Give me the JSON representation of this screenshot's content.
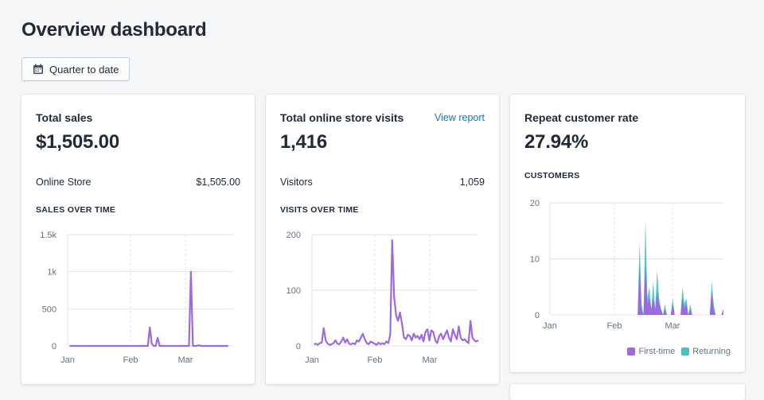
{
  "page": {
    "title": "Overview dashboard"
  },
  "date_filter": {
    "label": "Quarter to date",
    "icon": "calendar-icon"
  },
  "colors": {
    "purple": "#9c6ade",
    "teal": "#47c1bf",
    "link": "#007ace"
  },
  "cards": [
    {
      "title": "Total sales",
      "value": "$1,505.00",
      "row_label": "Online Store",
      "row_value": "$1,505.00",
      "section_label": "SALES OVER TIME"
    },
    {
      "title": "Total online store visits",
      "value": "1,416",
      "link_label": "View report",
      "row_label": "Visitors",
      "row_value": "1,059",
      "section_label": "VISITS OVER TIME"
    },
    {
      "title": "Repeat customer rate",
      "value": "27.94%",
      "section_label": "CUSTOMERS",
      "legend": [
        "First-time",
        "Returning"
      ]
    }
  ],
  "chart_data": [
    {
      "type": "line",
      "title": "SALES OVER TIME",
      "x_tick_labels": [
        "Jan",
        "Feb",
        "Mar"
      ],
      "y_tick_labels": [
        "0",
        "500",
        "1k",
        "1.5k"
      ],
      "ylim": [
        0,
        1500
      ],
      "grid": true,
      "x": [
        1,
        5,
        10,
        15,
        20,
        25,
        30,
        35,
        38,
        40,
        41,
        42,
        43,
        44,
        45,
        46,
        47,
        48,
        49,
        50,
        60,
        62,
        63,
        64,
        65,
        66,
        67,
        68,
        69,
        70,
        75,
        80,
        82
      ],
      "values": [
        0,
        0,
        0,
        0,
        0,
        0,
        0,
        0,
        0,
        0,
        0,
        250,
        30,
        0,
        0,
        110,
        0,
        0,
        0,
        0,
        0,
        0,
        1000,
        0,
        0,
        0,
        10,
        0,
        0,
        0,
        0,
        0,
        0
      ]
    },
    {
      "type": "line",
      "title": "VISITS OVER TIME",
      "x_tick_labels": [
        "Jan",
        "Feb",
        "Mar"
      ],
      "y_tick_labels": [
        "0",
        "100",
        "200"
      ],
      "ylim": [
        0,
        200
      ],
      "grid": true,
      "x": [
        1,
        2,
        3,
        4,
        5,
        6,
        7,
        8,
        9,
        10,
        11,
        12,
        13,
        14,
        15,
        16,
        17,
        18,
        19,
        20,
        21,
        22,
        23,
        24,
        25,
        26,
        27,
        28,
        29,
        30,
        31,
        32,
        33,
        34,
        35,
        36,
        37,
        38,
        39,
        40,
        41,
        42,
        43,
        44,
        45,
        46,
        47,
        48,
        49,
        50,
        51,
        52,
        53,
        54,
        55,
        56,
        57,
        58,
        59,
        60,
        61,
        62,
        63,
        64,
        65,
        66,
        67,
        68,
        69,
        70,
        71,
        72,
        73,
        74,
        75,
        76,
        77,
        78,
        79,
        80,
        81,
        82,
        83,
        84,
        85
      ],
      "values": [
        3,
        4,
        2,
        5,
        6,
        32,
        10,
        4,
        2,
        3,
        5,
        10,
        4,
        3,
        8,
        15,
        6,
        12,
        4,
        3,
        5,
        3,
        10,
        8,
        15,
        22,
        12,
        5,
        3,
        8,
        6,
        4,
        2,
        6,
        3,
        5,
        3,
        8,
        5,
        20,
        190,
        88,
        55,
        45,
        60,
        40,
        15,
        12,
        20,
        18,
        10,
        22,
        15,
        18,
        12,
        20,
        8,
        25,
        30,
        10,
        28,
        25,
        10,
        5,
        18,
        22,
        12,
        20,
        28,
        15,
        8,
        30,
        20,
        12,
        35,
        15,
        10,
        12,
        8,
        5,
        45,
        15,
        10,
        8,
        10
      ]
    },
    {
      "type": "area",
      "title": "CUSTOMERS",
      "x_tick_labels": [
        "Jan",
        "Feb",
        "Mar"
      ],
      "y_tick_labels": [
        "0",
        "10",
        "20"
      ],
      "ylim": [
        0,
        20
      ],
      "grid": true,
      "legend": "bottom-right",
      "series": [
        {
          "name": "First-time",
          "color": "#9c6ade",
          "values": [
            0,
            0,
            0,
            0,
            0,
            0,
            0,
            0,
            0,
            0,
            0,
            0,
            0,
            0,
            0,
            0,
            0,
            0,
            0,
            0,
            0,
            0,
            0,
            0,
            0,
            0,
            0,
            0,
            0,
            0,
            0,
            0,
            0,
            0,
            0,
            0,
            0,
            0,
            0,
            0,
            0,
            0,
            0,
            0,
            0,
            0,
            9,
            1,
            0,
            9,
            2,
            3,
            1,
            3,
            1,
            4,
            2,
            1,
            0,
            1,
            0,
            0,
            0,
            2,
            0,
            0,
            0,
            0,
            3,
            1,
            2,
            0,
            1,
            0,
            0,
            0,
            0,
            0,
            0,
            0,
            0,
            0,
            0,
            4,
            1,
            0,
            0,
            0,
            0,
            1
          ]
        },
        {
          "name": "Returning",
          "color": "#47c1bf",
          "values": [
            0,
            0,
            0,
            0,
            0,
            0,
            0,
            0,
            0,
            0,
            0,
            0,
            0,
            0,
            0,
            0,
            0,
            0,
            0,
            0,
            0,
            0,
            0,
            0,
            0,
            0,
            0,
            0,
            0,
            0,
            0,
            0,
            0,
            0,
            0,
            0,
            0,
            0,
            0,
            0,
            0,
            0,
            0,
            0,
            0,
            0,
            4,
            1,
            0,
            8,
            1,
            2,
            0,
            3,
            0,
            4,
            1,
            0,
            0,
            1,
            0,
            0,
            0,
            1,
            0,
            0,
            0,
            0,
            2,
            1,
            1,
            0,
            1,
            0,
            0,
            0,
            0,
            0,
            0,
            0,
            0,
            0,
            0,
            2,
            1,
            0,
            0,
            0,
            0,
            0
          ]
        }
      ]
    }
  ]
}
